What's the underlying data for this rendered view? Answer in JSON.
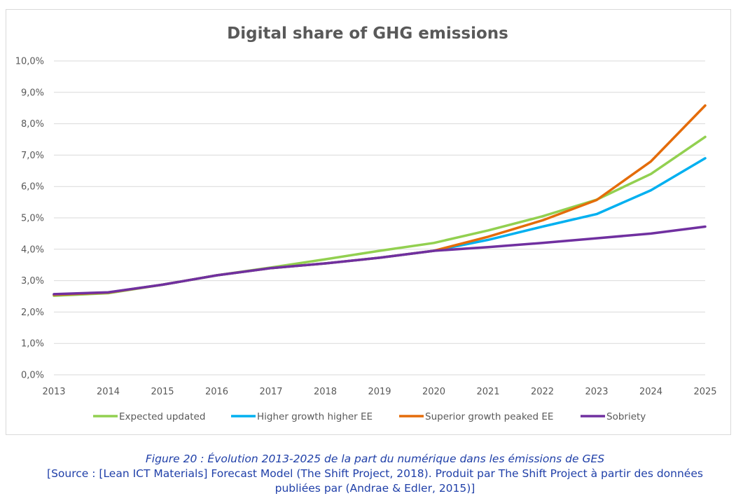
{
  "chart_data": {
    "type": "line",
    "title": "Digital share of GHG emissions",
    "x": [
      "2013",
      "2014",
      "2015",
      "2016",
      "2017",
      "2018",
      "2019",
      "2020",
      "2021",
      "2022",
      "2023",
      "2024",
      "2025"
    ],
    "y_ticks": [
      "0,0%",
      "1,0%",
      "2,0%",
      "3,0%",
      "4,0%",
      "5,0%",
      "6,0%",
      "7,0%",
      "8,0%",
      "9,0%",
      "10,0%"
    ],
    "ylim": [
      0,
      10
    ],
    "grid": true,
    "legend_position": "bottom",
    "series": [
      {
        "name": "Expected updated",
        "color": "#92d050",
        "values": [
          2.52,
          2.6,
          2.87,
          3.17,
          3.42,
          3.68,
          3.95,
          4.2,
          4.6,
          5.05,
          5.58,
          6.4,
          7.58
        ]
      },
      {
        "name": "Higher growth higher EE",
        "color": "#00b0f0",
        "values": [
          2.55,
          2.62,
          2.87,
          3.17,
          3.4,
          3.55,
          3.73,
          3.95,
          4.3,
          4.72,
          5.12,
          5.88,
          6.9
        ]
      },
      {
        "name": "Superior growth peaked EE",
        "color": "#e46c0a",
        "values": [
          2.55,
          2.62,
          2.87,
          3.17,
          3.4,
          3.55,
          3.73,
          3.95,
          4.4,
          4.92,
          5.57,
          6.8,
          8.58
        ]
      },
      {
        "name": "Sobriety",
        "color": "#7030a0",
        "values": [
          2.57,
          2.63,
          2.87,
          3.17,
          3.4,
          3.55,
          3.73,
          3.95,
          4.07,
          4.2,
          4.35,
          4.5,
          4.72
        ]
      }
    ]
  },
  "caption": {
    "title": "Figure 20 : Évolution 2013-2025 de la part du numérique dans les émissions de GES",
    "source_line1": "[Source : [Lean ICT Materials] Forecast Model (The Shift Project, 2018). Produit par The Shift Project à partir des données",
    "source_line2": "publiées par (Andrae & Edler, 2015)]"
  }
}
